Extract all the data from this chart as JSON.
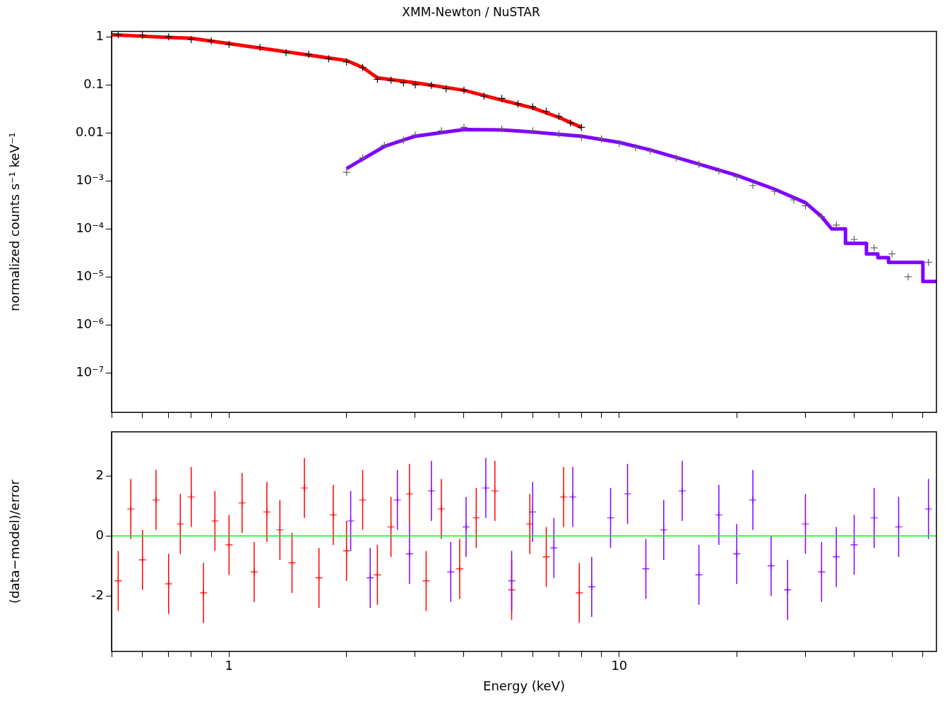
{
  "chart_data": [
    {
      "type": "scatter",
      "title": "XMM-Newton / NuSTAR",
      "ylabel": "normalized counts s⁻¹ keV⁻¹",
      "log": "xy",
      "xlim": [
        0.5,
        65
      ],
      "ylim": [
        1.5e-08,
        1.3
      ],
      "tick_labels": "y",
      "grid": false,
      "legend": false,
      "xticks": [
        {
          "value": 0.5,
          "label": null
        },
        {
          "value": 0.6,
          "label": null
        },
        {
          "value": 0.7,
          "label": null
        },
        {
          "value": 0.8,
          "label": null
        },
        {
          "value": 0.9,
          "label": null
        },
        {
          "value": 1,
          "label": null
        },
        {
          "value": 2,
          "label": null
        },
        {
          "value": 3,
          "label": null
        },
        {
          "value": 4,
          "label": null
        },
        {
          "value": 5,
          "label": null
        },
        {
          "value": 6,
          "label": null
        },
        {
          "value": 7,
          "label": null
        },
        {
          "value": 8,
          "label": null
        },
        {
          "value": 9,
          "label": null
        },
        {
          "value": 10,
          "label": null
        },
        {
          "value": 20,
          "label": null
        },
        {
          "value": 30,
          "label": null
        },
        {
          "value": 40,
          "label": null
        },
        {
          "value": 50,
          "label": null
        },
        {
          "value": 60,
          "label": null
        }
      ],
      "yticks": [
        1,
        0.1,
        0.01,
        {
          "value": 0.001,
          "label": "10⁻³"
        },
        {
          "value": 0.0001,
          "label": "10⁻⁴"
        },
        {
          "value": 1e-05,
          "label": "10⁻⁵"
        },
        {
          "value": 1e-06,
          "label": "10⁻⁶"
        },
        {
          "value": 1e-07,
          "label": "10⁻⁷"
        }
      ],
      "series": [
        {
          "marker": "cross",
          "color": "#000000",
          "x": [
            0.52,
            0.6,
            0.7,
            0.8,
            0.9,
            1.0,
            1.2,
            1.4,
            1.6,
            1.8,
            2.0,
            2.2,
            2.4,
            2.6,
            2.8,
            3.0,
            3.3,
            3.6,
            4.0,
            4.5,
            5.0,
            5.5,
            6.0,
            6.5,
            7.0,
            7.5,
            8.0
          ],
          "values": [
            1.1,
            1.08,
            1.0,
            0.88,
            0.82,
            0.7,
            0.6,
            0.47,
            0.43,
            0.35,
            0.3,
            0.23,
            0.13,
            0.125,
            0.11,
            0.1,
            0.097,
            0.083,
            0.077,
            0.058,
            0.052,
            0.04,
            0.035,
            0.028,
            0.022,
            0.016,
            0.013
          ]
        },
        {
          "type": "line",
          "marker": "none",
          "color": "#ff0000",
          "x": [
            0.5,
            0.8,
            1,
            1.5,
            2,
            2.2,
            2.4,
            3,
            4,
            5,
            6,
            7,
            8
          ],
          "values": [
            1.1,
            0.93,
            0.72,
            0.45,
            0.32,
            0.23,
            0.14,
            0.11,
            0.077,
            0.048,
            0.033,
            0.021,
            0.013
          ]
        },
        {
          "marker": "cross",
          "color": "#606060",
          "x": [
            2.0,
            2.2,
            2.5,
            2.8,
            3.0,
            3.5,
            4,
            5,
            6,
            7,
            8,
            9,
            10,
            11,
            12,
            14,
            16,
            18,
            20,
            22,
            25,
            28,
            30,
            33,
            36,
            40,
            45,
            50,
            55,
            62
          ],
          "values": [
            0.0015,
            0.003,
            0.0055,
            0.007,
            0.009,
            0.011,
            0.013,
            0.012,
            0.011,
            0.0095,
            0.008,
            0.0075,
            0.006,
            0.005,
            0.0042,
            0.003,
            0.0022,
            0.0016,
            0.0012,
            0.0008,
            0.0006,
            0.0004,
            0.0003,
            0.00018,
            0.00012,
            6e-05,
            4e-05,
            3e-05,
            1e-05,
            2e-05
          ]
        },
        {
          "type": "line",
          "marker": "none",
          "color": "#8000ff",
          "x": [
            2,
            2.5,
            3,
            4,
            5,
            6,
            8,
            10,
            12,
            15,
            20,
            25,
            30,
            33,
            35,
            38,
            38,
            43,
            43,
            46,
            46,
            49,
            49,
            60,
            60,
            65
          ],
          "values": [
            0.0018,
            0.0052,
            0.0085,
            0.0117,
            0.0115,
            0.0104,
            0.0085,
            0.0063,
            0.0044,
            0.0026,
            0.0013,
            0.00067,
            0.00035,
            0.00018,
            0.0001,
            0.0001,
            5e-05,
            5e-05,
            3e-05,
            3e-05,
            2.5e-05,
            2.5e-05,
            2e-05,
            2e-05,
            8e-06,
            8e-06
          ]
        }
      ]
    },
    {
      "type": "scatter",
      "xlabel": "Energy (keV)",
      "ylabel": "(data−model)/error",
      "log": "x",
      "xlim": [
        0.5,
        65
      ],
      "ylim": [
        -3.85,
        3.47
      ],
      "grid": false,
      "legend": false,
      "marker": "cross",
      "xticks": [
        {
          "value": 0.5,
          "label": null
        },
        {
          "value": 0.6,
          "label": null
        },
        {
          "value": 0.7,
          "label": null
        },
        {
          "value": 0.8,
          "label": null
        },
        {
          "value": 0.9,
          "label": null
        },
        {
          "value": 1,
          "label": "1"
        },
        {
          "value": 2,
          "label": null
        },
        {
          "value": 3,
          "label": null
        },
        {
          "value": 4,
          "label": null
        },
        {
          "value": 5,
          "label": null
        },
        {
          "value": 6,
          "label": null
        },
        {
          "value": 7,
          "label": null
        },
        {
          "value": 8,
          "label": null
        },
        {
          "value": 9,
          "label": null
        },
        {
          "value": 10,
          "label": "10"
        },
        {
          "value": 20,
          "label": null
        },
        {
          "value": 30,
          "label": null
        },
        {
          "value": 40,
          "label": null
        },
        {
          "value": 50,
          "label": null
        },
        {
          "value": 60,
          "label": null
        }
      ],
      "yticks": [
        -2,
        0,
        2
      ],
      "ref_lines": [
        {
          "axis": "y",
          "value": 0,
          "color": "#00ff00"
        }
      ],
      "series": [
        {
          "color": "#ff0000",
          "x": [
            0.52,
            0.56,
            0.6,
            0.65,
            0.7,
            0.75,
            0.8,
            0.86,
            0.92,
            1.0,
            1.08,
            1.16,
            1.25,
            1.35,
            1.45,
            1.56,
            1.7,
            1.85,
            2.0,
            2.2,
            2.4,
            2.6,
            2.9,
            3.2,
            3.5,
            3.9,
            4.3,
            4.8,
            5.3,
            5.9,
            6.5,
            7.2,
            7.9
          ],
          "values": [
            -1.5,
            0.9,
            -0.8,
            1.2,
            -1.6,
            0.4,
            1.3,
            -1.9,
            0.5,
            -0.3,
            1.1,
            -1.2,
            0.8,
            0.2,
            -0.9,
            1.6,
            -1.4,
            0.7,
            -0.5,
            1.2,
            -1.3,
            0.3,
            1.4,
            -1.5,
            0.9,
            -1.1,
            0.6,
            1.5,
            -1.8,
            0.4,
            -0.7,
            1.3,
            -1.9
          ],
          "errors": [
            1,
            1,
            1,
            1,
            1,
            1,
            1,
            1,
            1,
            1,
            1,
            1,
            1,
            1,
            1,
            1,
            1,
            1,
            1,
            1,
            1,
            1,
            1,
            1,
            1,
            1,
            1,
            1,
            1,
            1,
            1,
            1,
            1
          ]
        },
        {
          "color": "#8000ff",
          "x": [
            2.05,
            2.3,
            2.7,
            2.9,
            3.3,
            3.7,
            4.05,
            4.55,
            5.3,
            6.0,
            6.8,
            7.6,
            8.5,
            9.5,
            10.5,
            11.7,
            13,
            14.5,
            16,
            18,
            20,
            22,
            24.5,
            27,
            30,
            33,
            36,
            40,
            45,
            52,
            62
          ],
          "values": [
            0.5,
            -1.4,
            1.2,
            -0.6,
            1.5,
            -1.2,
            0.3,
            1.6,
            -1.5,
            0.8,
            -0.4,
            1.3,
            -1.7,
            0.6,
            1.4,
            -1.1,
            0.2,
            1.5,
            -1.3,
            0.7,
            -0.6,
            1.2,
            -1.0,
            -1.8,
            0.4,
            -1.2,
            -0.7,
            -0.3,
            0.6,
            0.3,
            0.9
          ],
          "errors": [
            1,
            1,
            1,
            1,
            1,
            1,
            1,
            1,
            1,
            1,
            1,
            1,
            1,
            1,
            1,
            1,
            1,
            1,
            1,
            1,
            1,
            1,
            1,
            1,
            1,
            1,
            1,
            1,
            1,
            1,
            1
          ]
        }
      ]
    }
  ]
}
